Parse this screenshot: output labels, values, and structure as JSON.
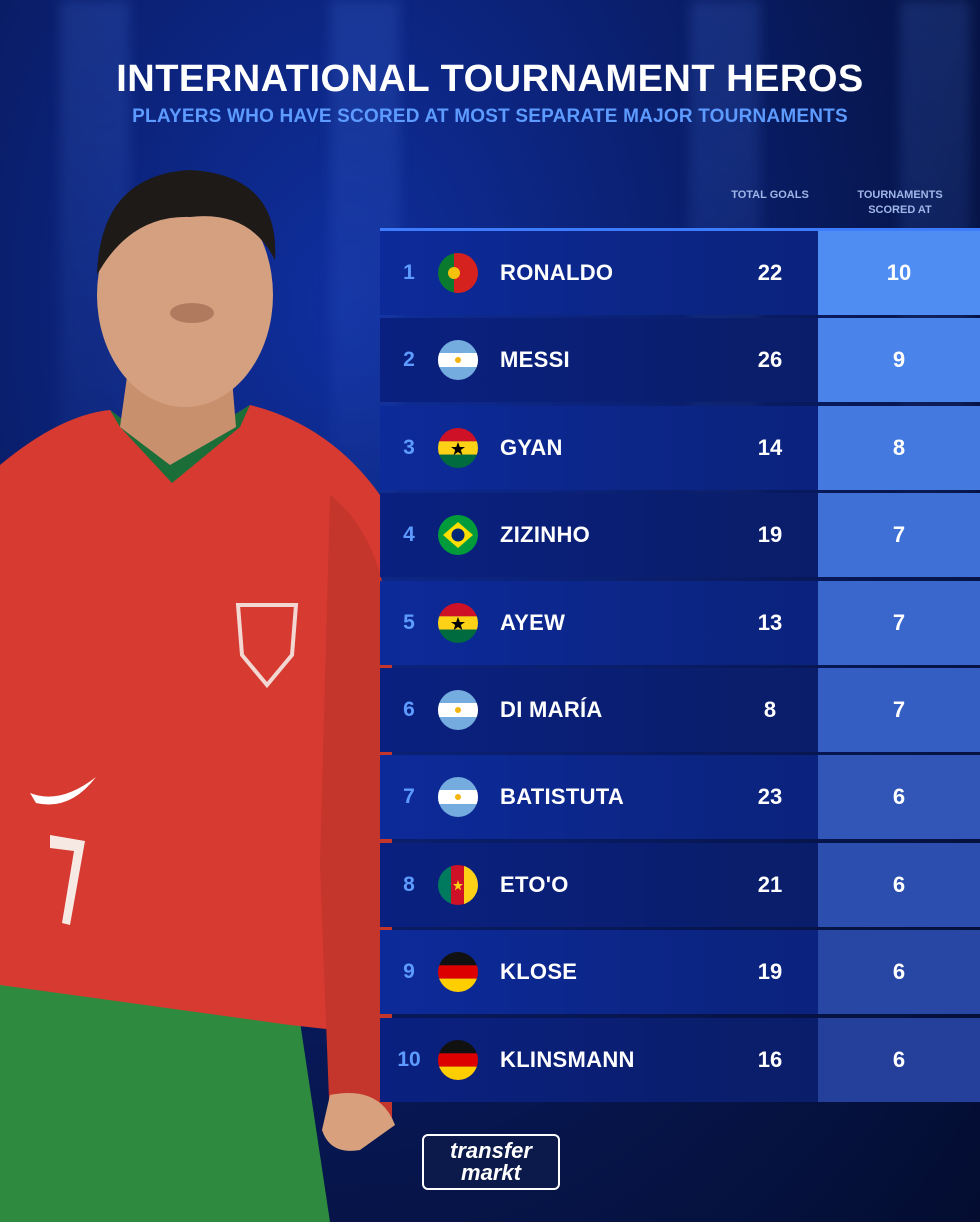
{
  "header": {
    "title": "INTERNATIONAL TOURNAMENT HEROS",
    "subtitle": "PLAYERS WHO HAVE SCORED AT MOST SEPARATE MAJOR TOURNAMENTS"
  },
  "columns": {
    "goals": "TOTAL GOALS",
    "tournaments": "TOURNAMENTS SCORED AT"
  },
  "rows": [
    {
      "rank": "1",
      "name": "RONALDO",
      "goals": "22",
      "tournaments": "10",
      "flag": "portugal-flag",
      "fill": "#4f8df2"
    },
    {
      "rank": "2",
      "name": "MESSI",
      "goals": "26",
      "tournaments": "9",
      "flag": "argentina-flag",
      "fill": "#4a84ea"
    },
    {
      "rank": "3",
      "name": "GYAN",
      "goals": "14",
      "tournaments": "8",
      "flag": "ghana-flag",
      "fill": "#447ae0"
    },
    {
      "rank": "4",
      "name": "ZIZINHO",
      "goals": "19",
      "tournaments": "7",
      "flag": "brazil-flag",
      "fill": "#3f70d6"
    },
    {
      "rank": "5",
      "name": "AYEW",
      "goals": "13",
      "tournaments": "7",
      "flag": "ghana-flag",
      "fill": "#3a67cc"
    },
    {
      "rank": "6",
      "name": "DI MARÍA",
      "goals": "8",
      "tournaments": "7",
      "flag": "argentina-flag",
      "fill": "#355ec2"
    },
    {
      "rank": "7",
      "name": "BATISTUTA",
      "goals": "23",
      "tournaments": "6",
      "flag": "argentina-flag",
      "fill": "#3156b8"
    },
    {
      "rank": "8",
      "name": "ETO'O",
      "goals": "21",
      "tournaments": "6",
      "flag": "cameroon-flag",
      "fill": "#2c4eae"
    },
    {
      "rank": "9",
      "name": "KLOSE",
      "goals": "19",
      "tournaments": "6",
      "flag": "germany-flag",
      "fill": "#2847a4"
    },
    {
      "rank": "10",
      "name": "KLINSMANN",
      "goals": "16",
      "tournaments": "6",
      "flag": "germany-flag",
      "fill": "#24409a"
    }
  ],
  "logo": {
    "line1": "transfer",
    "line2": "markt"
  },
  "colors": {
    "accent": "#5d9bff",
    "background": "#0a1f6e"
  }
}
